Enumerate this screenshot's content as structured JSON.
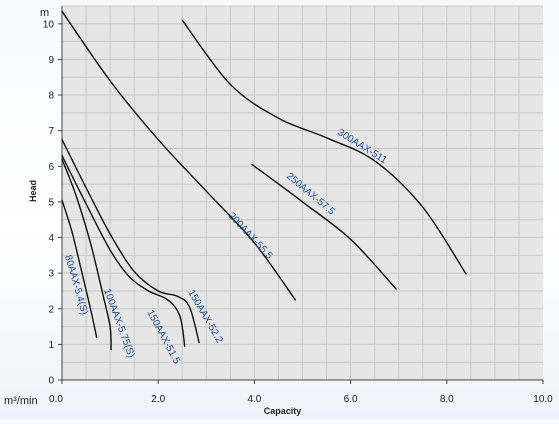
{
  "chart_data": {
    "type": "line",
    "xlabel": "Capacity",
    "ylabel": "Head",
    "x_unit": "m³/min",
    "y_unit": "m",
    "xlim": [
      0,
      10
    ],
    "ylim": [
      0,
      10.5
    ],
    "x_ticks": [
      "0.0",
      "2.0",
      "4.0",
      "6.0",
      "8.0",
      "10.0"
    ],
    "y_ticks": [
      "0",
      "1",
      "2",
      "3",
      "4",
      "5",
      "6",
      "7",
      "8",
      "9",
      "10"
    ],
    "grid": true,
    "series": [
      {
        "name": "80AAX-5.4(S)",
        "points": [
          [
            0.0,
            5.05
          ],
          [
            0.2,
            4.2
          ],
          [
            0.4,
            3.1
          ],
          [
            0.6,
            1.95
          ],
          [
            0.72,
            1.2
          ]
        ]
      },
      {
        "name": "100AAX-5.75(S)",
        "points": [
          [
            0.0,
            6.2
          ],
          [
            0.3,
            5.15
          ],
          [
            0.6,
            3.8
          ],
          [
            0.85,
            2.4
          ],
          [
            1.0,
            1.5
          ],
          [
            1.02,
            0.85
          ]
        ]
      },
      {
        "name": "150AAX-51.5",
        "points": [
          [
            0.0,
            6.3
          ],
          [
            0.5,
            4.95
          ],
          [
            1.0,
            3.65
          ],
          [
            1.4,
            2.9
          ],
          [
            1.8,
            2.5
          ],
          [
            2.2,
            2.25
          ],
          [
            2.45,
            1.8
          ],
          [
            2.55,
            0.95
          ]
        ]
      },
      {
        "name": "150AAX-52.2",
        "points": [
          [
            0.0,
            6.75
          ],
          [
            0.5,
            5.4
          ],
          [
            1.0,
            4.1
          ],
          [
            1.5,
            3.05
          ],
          [
            2.0,
            2.5
          ],
          [
            2.4,
            2.35
          ],
          [
            2.65,
            2.05
          ],
          [
            2.85,
            1.05
          ]
        ]
      },
      {
        "name": "200AAX-55.5",
        "points": [
          [
            0.0,
            10.35
          ],
          [
            1.0,
            8.4
          ],
          [
            2.0,
            6.75
          ],
          [
            3.0,
            5.3
          ],
          [
            4.0,
            3.85
          ],
          [
            4.85,
            2.25
          ]
        ]
      },
      {
        "name": "250AAX-57.5",
        "points": [
          [
            3.95,
            6.05
          ],
          [
            5.0,
            5.0
          ],
          [
            6.0,
            3.95
          ],
          [
            6.95,
            2.55
          ]
        ]
      },
      {
        "name": "300AAX-511",
        "points": [
          [
            2.5,
            10.1
          ],
          [
            3.5,
            8.3
          ],
          [
            4.5,
            7.35
          ],
          [
            5.5,
            6.8
          ],
          [
            6.5,
            6.15
          ],
          [
            7.5,
            4.85
          ],
          [
            8.4,
            2.98
          ]
        ]
      }
    ]
  }
}
